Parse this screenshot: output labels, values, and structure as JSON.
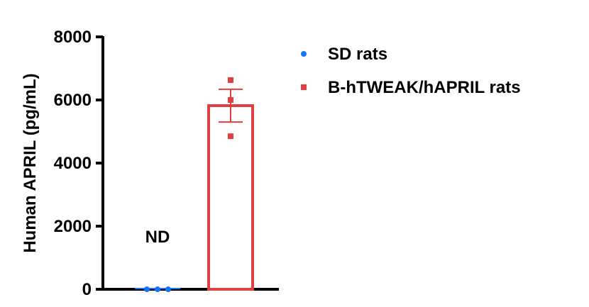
{
  "chart_data": {
    "type": "bar",
    "ylabel": "Human APRIL (pg/mL)",
    "xlabel": "",
    "ylim": [
      0,
      8000
    ],
    "yticks": [
      "0",
      "2000",
      "4000",
      "6000",
      "8000"
    ],
    "grid": false,
    "legend_placement": "right",
    "series": [
      {
        "name": "SD rats",
        "color": "#1a73f5",
        "marker": "circle",
        "mean": 0,
        "sem": 0,
        "points": [
          0,
          0,
          0
        ],
        "annotation": "ND"
      },
      {
        "name": "B-hTWEAK/hAPRIL rats",
        "color": "#e04040",
        "marker": "square",
        "mean": 5820,
        "sem": 520,
        "points": [
          6630,
          6000,
          4850
        ]
      }
    ]
  }
}
